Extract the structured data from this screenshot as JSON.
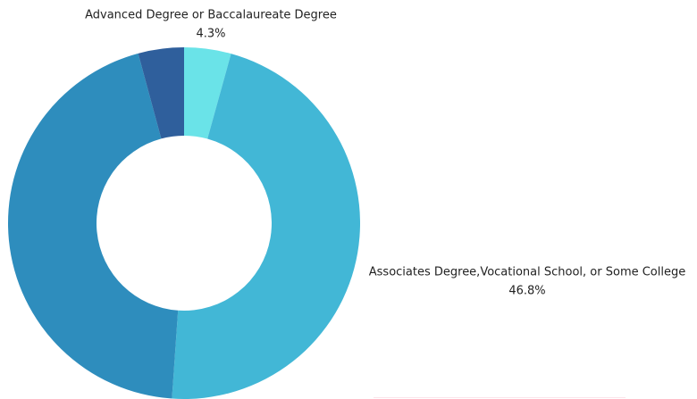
{
  "chart_data": {
    "type": "donut",
    "categories": [
      "Advanced Degree or Baccalaureate Degree",
      "Associates Degree,Vocational School, or Some College",
      null,
      null
    ],
    "values": [
      4.3,
      46.8,
      44.7,
      4.2
    ],
    "value_labels": [
      "4.3%",
      "46.8%",
      null,
      null
    ],
    "colors": [
      "#6ae3e8",
      "#42b7d6",
      "#2e8dbd",
      "#2f5f9c"
    ]
  }
}
